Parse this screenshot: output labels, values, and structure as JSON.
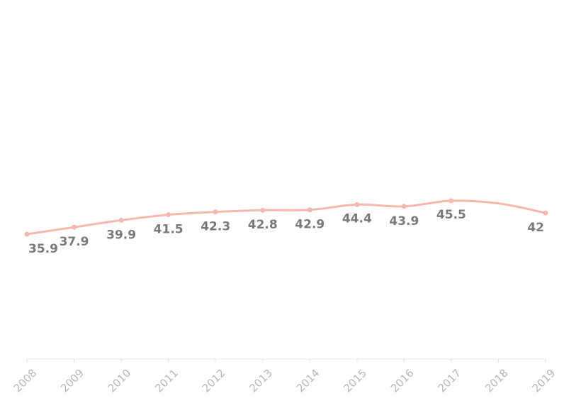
{
  "chart_data": {
    "type": "line",
    "x": [
      "2008",
      "2009",
      "2010",
      "2011",
      "2012",
      "2013",
      "2014",
      "2015",
      "2016",
      "2017",
      "2018",
      "2019"
    ],
    "series": [
      {
        "values": [
          35.9,
          37.9,
          39.9,
          41.5,
          42.3,
          42.8,
          42.9,
          44.4,
          43.9,
          45.5,
          null,
          42
        ],
        "data_labels": [
          "35.9",
          "37.9",
          "39.9",
          "41.5",
          "42.3",
          "42.8",
          "42.9",
          "44.4",
          "43.9",
          "45.5",
          "",
          "42"
        ],
        "color": "#f4b8ae"
      }
    ],
    "title": "",
    "xlabel": "",
    "ylabel": "",
    "grid": false,
    "legend": "none",
    "axis_color": "#e6e6e6",
    "tick_label_color": "#b8b8b8",
    "data_label_color": "#7a7a7a"
  }
}
